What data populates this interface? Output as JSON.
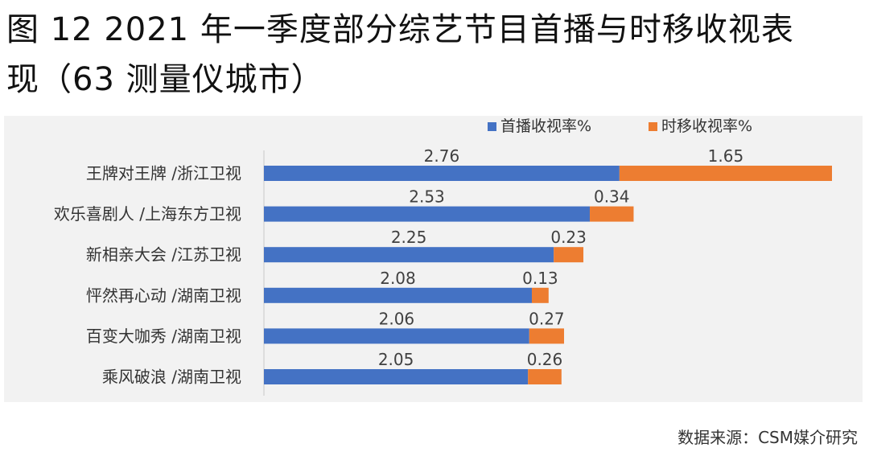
{
  "title_line1": "图 12 2021 年一季度部分综艺节目首播与时移收视表",
  "title_line2": "现（63 测量仪城市）",
  "source": "数据来源：CSM媒介研究",
  "chart_data": {
    "type": "bar",
    "stacked": true,
    "orientation": "horizontal",
    "legend_position": "top-right",
    "grid": false,
    "categories": [
      "王牌对王牌 /浙江卫视",
      "欢乐喜剧人 /上海东方卫视",
      "新相亲大会 /江苏卫视",
      "怦然再心动 /湖南卫视",
      "百变大咖秀 /湖南卫视",
      "乘风破浪 /湖南卫视"
    ],
    "series": [
      {
        "name": "首播收视率%",
        "color": "#4472c4",
        "values": [
          2.76,
          2.53,
          2.25,
          2.08,
          2.06,
          2.05
        ]
      },
      {
        "name": "时移收视率%",
        "color": "#ed7d31",
        "values": [
          1.65,
          0.34,
          0.23,
          0.13,
          0.27,
          0.26
        ]
      }
    ],
    "xlim": [
      0,
      4.41
    ]
  }
}
